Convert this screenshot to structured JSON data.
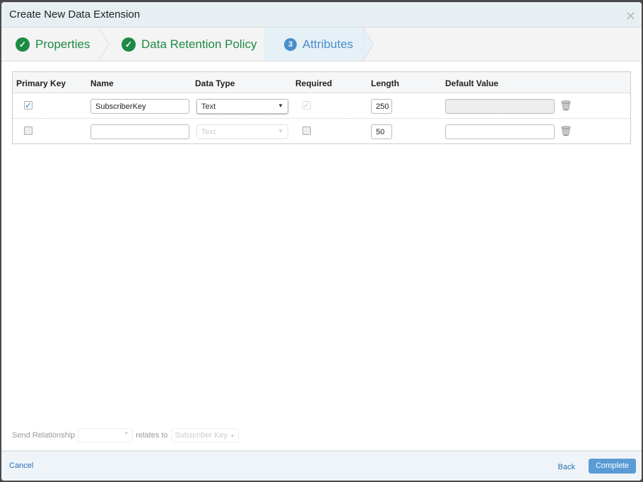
{
  "dialog": {
    "title": "Create New Data Extension"
  },
  "steps": [
    {
      "label": "Properties",
      "status": "complete"
    },
    {
      "label": "Data Retention Policy",
      "status": "complete"
    },
    {
      "label": "Attributes",
      "number": "3",
      "status": "active"
    }
  ],
  "table": {
    "headers": [
      "Primary Key",
      "Name",
      "Data Type",
      "Required",
      "Length",
      "Default Value"
    ],
    "rows": [
      {
        "primary_key": true,
        "name": "SubscriberKey",
        "data_type": "Text",
        "required": true,
        "length": "250",
        "default_value": ""
      },
      {
        "primary_key": false,
        "name": "",
        "data_type": "Text",
        "required": false,
        "length": "50",
        "default_value": ""
      }
    ]
  },
  "relationship": {
    "label": "Send Relationship",
    "selected": "",
    "relates_to_label": "relates to",
    "relates_to": "Subscriber Key"
  },
  "footer": {
    "cancel": "Cancel",
    "back": "Back",
    "complete": "Complete"
  },
  "colors": {
    "complete": "#1e8a44",
    "active": "#4a8ecb",
    "button": "#5a9bd5"
  }
}
